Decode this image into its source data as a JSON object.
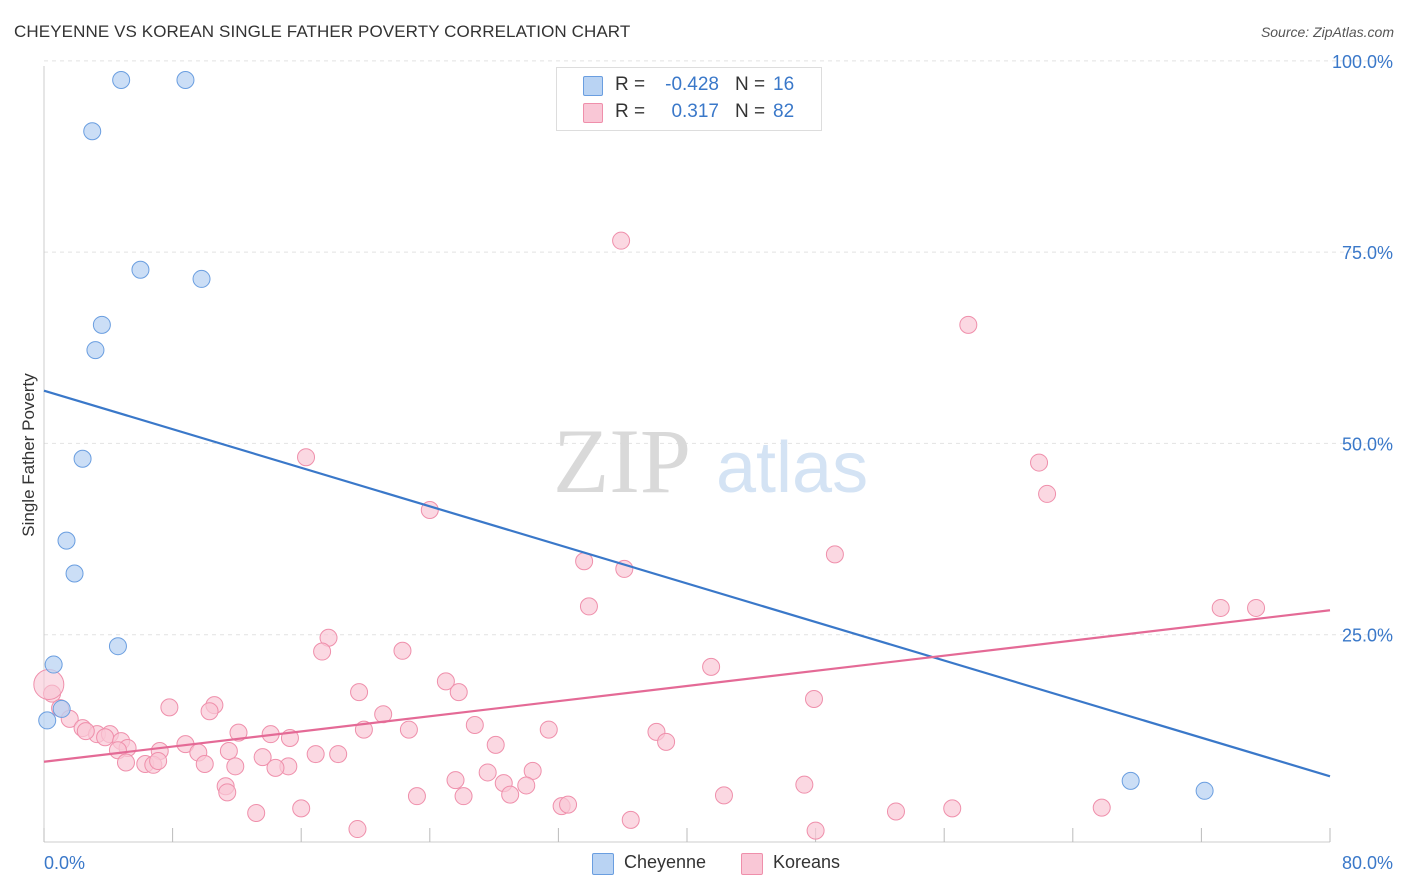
{
  "header": {
    "title": "CHEYENNE VS KOREAN SINGLE FATHER POVERTY CORRELATION CHART",
    "source": "Source: ZipAtlas.com"
  },
  "legend_top": {
    "rows": [
      {
        "r_label": "R =",
        "r_value": "-0.428",
        "n_label": "N =",
        "n_value": "16",
        "color": "#b9d3f3"
      },
      {
        "r_label": "R =",
        "r_value": "0.317",
        "n_label": "N =",
        "n_value": "82",
        "color": "#f9c7d6"
      }
    ]
  },
  "legend_bottom": {
    "items": [
      {
        "label": "Cheyenne",
        "color": "#b9d3f3"
      },
      {
        "label": "Koreans",
        "color": "#f9c7d6"
      }
    ]
  },
  "watermark": {
    "zip": "ZIP",
    "atlas": "atlas"
  },
  "chart_data": {
    "type": "scatter",
    "title": "CHEYENNE VS KOREAN SINGLE FATHER POVERTY CORRELATION CHART",
    "xlabel": "",
    "ylabel": "Single Father Poverty",
    "xlim": [
      0,
      80
    ],
    "ylim": [
      0,
      100
    ],
    "x_tick_labels": [
      "0.0%",
      "80.0%"
    ],
    "y_tick_labels": [
      "25.0%",
      "50.0%",
      "75.0%",
      "100.0%"
    ],
    "y_ticks": [
      25,
      50,
      75,
      100
    ],
    "grid": true,
    "legend_position": "bottom",
    "colors": {
      "cheyenne": "#3a78c9",
      "cheyenne_fill": "#b9d3f3",
      "koreans": "#e46a96",
      "koreans_fill": "#f9c7d6",
      "axis_text": "#3a78c9"
    },
    "series": [
      {
        "name": "Cheyenne",
        "r": -0.428,
        "n": 16,
        "trend": {
          "x": [
            0,
            80
          ],
          "y": [
            56.9,
            6.5
          ]
        },
        "points": [
          [
            4.8,
            97.5
          ],
          [
            8.8,
            97.5
          ],
          [
            3.0,
            90.8
          ],
          [
            6.0,
            72.7
          ],
          [
            9.8,
            71.5
          ],
          [
            3.6,
            65.5
          ],
          [
            3.2,
            62.2
          ],
          [
            2.4,
            48.0
          ],
          [
            1.4,
            37.3
          ],
          [
            1.9,
            33.0
          ],
          [
            4.6,
            23.5
          ],
          [
            0.6,
            21.1
          ],
          [
            1.1,
            15.3
          ],
          [
            0.2,
            13.8
          ],
          [
            67.6,
            5.9
          ],
          [
            72.2,
            4.6
          ]
        ]
      },
      {
        "name": "Koreans",
        "r": 0.317,
        "n": 82,
        "trend": {
          "x": [
            0,
            80
          ],
          "y": [
            8.4,
            28.2
          ]
        },
        "points": [
          [
            35.9,
            76.5
          ],
          [
            57.5,
            65.5
          ],
          [
            16.3,
            48.2
          ],
          [
            61.9,
            47.5
          ],
          [
            62.4,
            43.4
          ],
          [
            24.0,
            41.3
          ],
          [
            49.2,
            35.5
          ],
          [
            33.6,
            34.6
          ],
          [
            36.1,
            33.6
          ],
          [
            33.9,
            28.7
          ],
          [
            73.2,
            28.5
          ],
          [
            75.4,
            28.5
          ],
          [
            17.7,
            24.6
          ],
          [
            17.3,
            22.8
          ],
          [
            22.3,
            22.9
          ],
          [
            41.5,
            20.8
          ],
          [
            25.0,
            18.9
          ],
          [
            19.6,
            17.5
          ],
          [
            25.8,
            17.5
          ],
          [
            47.9,
            16.6
          ],
          [
            10.6,
            15.8
          ],
          [
            7.8,
            15.5
          ],
          [
            10.3,
            15.0
          ],
          [
            21.1,
            14.6
          ],
          [
            26.8,
            13.2
          ],
          [
            31.4,
            12.6
          ],
          [
            19.9,
            12.6
          ],
          [
            22.7,
            12.6
          ],
          [
            12.1,
            12.2
          ],
          [
            0.5,
            17.3
          ],
          [
            1.0,
            15.4
          ],
          [
            1.6,
            14.0
          ],
          [
            2.4,
            12.8
          ],
          [
            3.3,
            12.0
          ],
          [
            4.1,
            12.0
          ],
          [
            3.8,
            11.6
          ],
          [
            2.6,
            12.4
          ],
          [
            4.8,
            11.1
          ],
          [
            5.2,
            10.2
          ],
          [
            8.8,
            10.7
          ],
          [
            14.1,
            12.0
          ],
          [
            15.3,
            11.5
          ],
          [
            28.1,
            10.6
          ],
          [
            38.1,
            12.3
          ],
          [
            38.7,
            11.0
          ],
          [
            4.6,
            9.9
          ],
          [
            7.2,
            9.8
          ],
          [
            9.6,
            9.6
          ],
          [
            11.5,
            9.8
          ],
          [
            13.6,
            9.0
          ],
          [
            16.9,
            9.4
          ],
          [
            18.3,
            9.4
          ],
          [
            5.1,
            8.3
          ],
          [
            6.3,
            8.1
          ],
          [
            6.8,
            8.0
          ],
          [
            7.1,
            8.5
          ],
          [
            10.0,
            8.1
          ],
          [
            11.9,
            7.8
          ],
          [
            15.2,
            7.8
          ],
          [
            14.4,
            7.6
          ],
          [
            30.4,
            7.2
          ],
          [
            27.6,
            7.0
          ],
          [
            25.6,
            6.0
          ],
          [
            28.6,
            5.6
          ],
          [
            30.0,
            5.3
          ],
          [
            29.0,
            4.1
          ],
          [
            26.1,
            3.9
          ],
          [
            23.2,
            3.9
          ],
          [
            11.3,
            5.2
          ],
          [
            11.4,
            4.4
          ],
          [
            42.3,
            4.0
          ],
          [
            47.3,
            5.4
          ],
          [
            32.2,
            2.6
          ],
          [
            32.6,
            2.8
          ],
          [
            16.0,
            2.3
          ],
          [
            13.2,
            1.7
          ],
          [
            36.5,
            0.8
          ],
          [
            53.0,
            1.9
          ],
          [
            56.5,
            2.3
          ],
          [
            65.8,
            2.4
          ],
          [
            19.5,
            -0.4
          ],
          [
            48.0,
            -0.6
          ]
        ]
      }
    ]
  }
}
